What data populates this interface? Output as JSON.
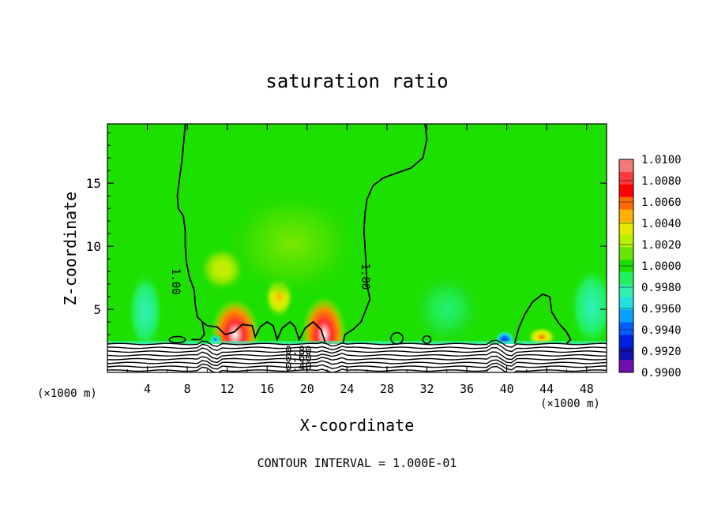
{
  "chart_data": {
    "type": "heatmap",
    "title": "saturation ratio",
    "xlabel": "X-coordinate",
    "ylabel": "Z-coordinate",
    "x_unit": "(×1000 m)",
    "x_unit_right": "(×1000 m)",
    "footer": "CONTOUR INTERVAL = 1.000E-01",
    "xlim": [
      0,
      50
    ],
    "ylim": [
      0,
      19.7
    ],
    "x_ticks": [
      4,
      8,
      12,
      16,
      20,
      24,
      28,
      32,
      36,
      40,
      44,
      48
    ],
    "y_ticks": [
      5,
      10,
      15
    ],
    "colorbar": {
      "levels": [
        "1.0100",
        "1.0080",
        "1.0060",
        "1.0040",
        "1.0020",
        "1.0000",
        "0.9980",
        "0.9960",
        "0.9940",
        "0.9920",
        "0.9900"
      ],
      "colors": [
        "#f07a7a",
        "#ff3b3b",
        "#ff0000",
        "#ff6a00",
        "#ffb000",
        "#e8e800",
        "#b8f000",
        "#66e600",
        "#1ee000",
        "#22f060",
        "#33f0b0",
        "#22e0e0",
        "#0aa0ff",
        "#0060ff",
        "#0020e0",
        "#1010b0",
        "#7010b0"
      ]
    },
    "contour_labels": [
      {
        "text": "1.00",
        "x": 6.8,
        "z": 7.2,
        "rotate": 90
      },
      {
        "text": "1.00",
        "x": 25.8,
        "z": 7.6,
        "rotate": 90
      },
      {
        "text": "0.80",
        "x": 17.8,
        "z": 1.7,
        "rotate": 0
      },
      {
        "text": "0.60",
        "x": 17.8,
        "z": 1.1,
        "rotate": 0
      },
      {
        "text": "0.40",
        "x": 17.8,
        "z": 0.4,
        "rotate": 0
      }
    ],
    "contours": [
      {
        "name": "1.00-left",
        "points": [
          [
            7.8,
            19.7
          ],
          [
            7.5,
            17
          ],
          [
            7.0,
            14
          ],
          [
            7.1,
            13
          ],
          [
            7.6,
            12.4
          ],
          [
            7.8,
            11.2
          ],
          [
            7.8,
            10
          ],
          [
            7.9,
            8.8
          ],
          [
            8.2,
            7.6
          ],
          [
            8.7,
            6.5
          ],
          [
            8.8,
            5.4
          ],
          [
            9.0,
            4.4
          ],
          [
            9.5,
            4.0
          ],
          [
            9.7,
            3.0
          ],
          [
            9.3,
            2.6
          ],
          [
            8.4,
            2.6
          ]
        ]
      },
      {
        "name": "1.00-right",
        "points": [
          [
            31.8,
            19.7
          ],
          [
            32.0,
            18.5
          ],
          [
            31.6,
            17.0
          ],
          [
            30.4,
            16.2
          ],
          [
            28.6,
            15.7
          ],
          [
            27.6,
            15.4
          ],
          [
            26.6,
            14.8
          ],
          [
            26.0,
            13.7
          ],
          [
            25.8,
            12.6
          ],
          [
            25.7,
            11.2
          ],
          [
            25.8,
            10.0
          ],
          [
            25.9,
            8.5
          ],
          [
            26.0,
            7.0
          ],
          [
            26.3,
            5.8
          ],
          [
            25.8,
            4.8
          ],
          [
            25.4,
            4.0
          ],
          [
            24.6,
            3.4
          ],
          [
            23.8,
            3.0
          ],
          [
            23.6,
            2.3
          ]
        ]
      },
      {
        "name": "1.00-bumps",
        "points": [
          [
            9.5,
            4.0
          ],
          [
            10.0,
            3.7
          ],
          [
            11.0,
            3.6
          ],
          [
            11.8,
            3.0
          ],
          [
            12.7,
            3.2
          ],
          [
            13.5,
            3.8
          ],
          [
            14.5,
            3.7
          ],
          [
            14.8,
            2.8
          ],
          [
            15.3,
            3.6
          ],
          [
            16.0,
            4.0
          ],
          [
            16.6,
            3.7
          ],
          [
            17.0,
            2.6
          ],
          [
            17.5,
            3.5
          ],
          [
            18.3,
            4.0
          ],
          [
            18.8,
            3.6
          ],
          [
            19.2,
            2.6
          ],
          [
            19.8,
            3.5
          ],
          [
            20.6,
            4.0
          ],
          [
            21.4,
            3.4
          ],
          [
            21.8,
            2.4
          ]
        ]
      },
      {
        "name": "1.00-east",
        "points": [
          [
            40.8,
            2.3
          ],
          [
            41.2,
            3.5
          ],
          [
            41.8,
            4.6
          ],
          [
            42.6,
            5.6
          ],
          [
            43.6,
            6.2
          ],
          [
            44.3,
            6.0
          ],
          [
            44.5,
            4.8
          ],
          [
            45.2,
            3.9
          ],
          [
            46.0,
            3.2
          ],
          [
            46.4,
            2.6
          ],
          [
            46.0,
            2.3
          ]
        ]
      }
    ],
    "blobs": [
      {
        "x": 12.8,
        "z": 3.0,
        "rx": 2.4,
        "rz": 2.8,
        "colors": [
          "#ffffff",
          "#ff3030",
          "#ff8a00",
          "#d8f000"
        ]
      },
      {
        "x": 21.7,
        "z": 3.0,
        "rx": 2.2,
        "rz": 3.0,
        "colors": [
          "#ffffff",
          "#ff3030",
          "#ff8a00",
          "#d8f000"
        ]
      },
      {
        "x": 17.2,
        "z": 6.0,
        "rx": 1.4,
        "rz": 1.6,
        "colors": [
          "#ffb000",
          "#e8e800",
          "#b8f000",
          "#66e600"
        ]
      },
      {
        "x": 11.5,
        "z": 8.2,
        "rx": 2.2,
        "rz": 1.7,
        "colors": [
          "#d0e800",
          "#b8f000",
          "#80e600",
          "#3ee000"
        ]
      },
      {
        "x": 18.5,
        "z": 10.2,
        "rx": 6.5,
        "rz": 4.2,
        "colors": [
          "#7ae800",
          "#55e400",
          "#38e000",
          "#22dc00"
        ]
      },
      {
        "x": 43.5,
        "z": 2.8,
        "rx": 1.4,
        "rz": 0.8,
        "colors": [
          "#ff6a00",
          "#e8e800",
          "#b8f000",
          "#44e000"
        ]
      },
      {
        "x": 3.8,
        "z": 4.8,
        "rx": 1.8,
        "rz": 3.2,
        "colors": [
          "#33f0c0",
          "#28f090",
          "#22f060",
          "#1ee000"
        ]
      },
      {
        "x": 34.0,
        "z": 5.0,
        "rx": 3.6,
        "rz": 3.0,
        "colors": [
          "#24f070",
          "#22ec50",
          "#1ee020",
          "#1ee000"
        ]
      },
      {
        "x": 48.5,
        "z": 5.2,
        "rx": 2.2,
        "rz": 3.2,
        "colors": [
          "#33f0c0",
          "#28f090",
          "#22f060",
          "#1ee000"
        ]
      },
      {
        "x": 39.8,
        "z": 2.6,
        "rx": 1.0,
        "rz": 0.7,
        "colors": [
          "#0020e0",
          "#0080ff",
          "#22e0e0",
          "#22f060"
        ]
      },
      {
        "x": 10.8,
        "z": 2.6,
        "rx": 0.7,
        "rz": 0.5,
        "colors": [
          "#0060ff",
          "#22e0e0",
          "#22f060",
          "#1ee000"
        ]
      }
    ]
  }
}
